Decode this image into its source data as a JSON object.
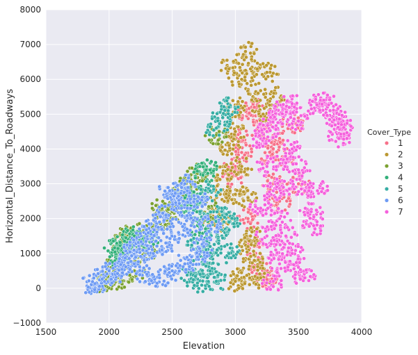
{
  "chart_data": {
    "type": "scatter",
    "xlabel": "Elevation",
    "ylabel": "Horizontal_Distance_To_Roadways",
    "xlim": [
      1500,
      4000
    ],
    "ylim": [
      -1000,
      8000
    ],
    "x_ticks": [
      "1500",
      "2000",
      "2500",
      "3000",
      "3500",
      "4000"
    ],
    "y_ticks": [
      "−1000",
      "0",
      "1000",
      "2000",
      "3000",
      "4000",
      "5000",
      "6000",
      "7000",
      "8000"
    ],
    "grid": true,
    "background": "#eaeaf2",
    "legend": {
      "title": "Cover_Type",
      "placement": "right"
    },
    "series": [
      {
        "name": "1",
        "color": "#f77189",
        "values": [
          [
            2980,
            3200
          ],
          [
            3000,
            3500
          ],
          [
            3050,
            4300
          ],
          [
            3100,
            5000
          ],
          [
            3150,
            5200
          ],
          [
            3200,
            4600
          ],
          [
            3250,
            3800
          ],
          [
            3300,
            3000
          ],
          [
            3350,
            2500
          ],
          [
            3100,
            2000
          ],
          [
            3150,
            1200
          ],
          [
            3200,
            600
          ],
          [
            3250,
            250
          ],
          [
            3400,
            3800
          ],
          [
            3500,
            3000
          ],
          [
            3450,
            4700
          ],
          [
            3050,
            3900
          ],
          [
            3300,
            4300
          ]
        ]
      },
      {
        "name": "2",
        "color": "#bb9832",
        "values": [
          [
            2800,
            2100
          ],
          [
            2880,
            2700
          ],
          [
            2900,
            3300
          ],
          [
            2950,
            4100
          ],
          [
            3000,
            5200
          ],
          [
            3050,
            6000
          ],
          [
            3080,
            6800
          ],
          [
            3120,
            6300
          ],
          [
            3180,
            5600
          ],
          [
            3250,
            6200
          ],
          [
            3300,
            5500
          ],
          [
            3000,
            4500
          ],
          [
            3050,
            3500
          ],
          [
            3100,
            2600
          ],
          [
            3120,
            1500
          ],
          [
            3150,
            800
          ],
          [
            3050,
            300
          ],
          [
            3000,
            200
          ],
          [
            3200,
            300
          ],
          [
            3100,
            1200
          ],
          [
            2950,
            6300
          ],
          [
            3220,
            5000
          ],
          [
            2900,
            1900
          ],
          [
            3000,
            2700
          ]
        ]
      },
      {
        "name": "3",
        "color": "#7ba130",
        "values": [
          [
            1950,
            100
          ],
          [
            2000,
            200
          ],
          [
            2050,
            700
          ],
          [
            2100,
            1300
          ],
          [
            2150,
            1500
          ],
          [
            2200,
            500
          ],
          [
            2300,
            1000
          ],
          [
            2400,
            1900
          ],
          [
            2500,
            2200
          ],
          [
            2550,
            2600
          ],
          [
            2600,
            2800
          ],
          [
            2650,
            3100
          ],
          [
            2700,
            3300
          ],
          [
            2800,
            2200
          ],
          [
            2850,
            4400
          ],
          [
            2150,
            1000
          ],
          [
            2100,
            200
          ],
          [
            2250,
            1600
          ],
          [
            2420,
            2300
          ]
        ]
      },
      {
        "name": "4",
        "color": "#33b07a",
        "values": [
          [
            2050,
            1200
          ],
          [
            2100,
            1100
          ],
          [
            2150,
            1350
          ],
          [
            2200,
            1250
          ],
          [
            2300,
            1400
          ],
          [
            2650,
            2300
          ],
          [
            2700,
            2700
          ],
          [
            2750,
            3300
          ],
          [
            2800,
            3400
          ],
          [
            2600,
            2600
          ],
          [
            2080,
            900
          ],
          [
            2200,
            1500
          ],
          [
            2700,
            1800
          ]
        ]
      },
      {
        "name": "5",
        "color": "#36ada4",
        "values": [
          [
            2650,
            400
          ],
          [
            2700,
            150
          ],
          [
            2750,
            900
          ],
          [
            2800,
            500
          ],
          [
            2850,
            1600
          ],
          [
            2900,
            2100
          ],
          [
            2950,
            1000
          ],
          [
            2700,
            1300
          ],
          [
            2850,
            4600
          ],
          [
            2900,
            4900
          ],
          [
            2950,
            5200
          ],
          [
            2800,
            2800
          ],
          [
            2720,
            2200
          ],
          [
            2850,
            200
          ],
          [
            2950,
            1900
          ],
          [
            2800,
            1200
          ]
        ]
      },
      {
        "name": "6",
        "color": "#6e9bf4",
        "values": [
          [
            1860,
            100
          ],
          [
            1900,
            150
          ],
          [
            1950,
            300
          ],
          [
            2000,
            500
          ],
          [
            2050,
            400
          ],
          [
            2100,
            700
          ],
          [
            2150,
            900
          ],
          [
            2200,
            1100
          ],
          [
            2250,
            1300
          ],
          [
            2300,
            1500
          ],
          [
            2350,
            1700
          ],
          [
            2400,
            1900
          ],
          [
            2450,
            2100
          ],
          [
            2500,
            2500
          ],
          [
            2550,
            2700
          ],
          [
            2600,
            3000
          ],
          [
            2700,
            2500
          ],
          [
            2800,
            1800
          ],
          [
            2350,
            1000
          ],
          [
            2450,
            1300
          ],
          [
            2550,
            1600
          ],
          [
            2650,
            1800
          ],
          [
            2750,
            1200
          ],
          [
            2400,
            300
          ],
          [
            2500,
            500
          ],
          [
            2600,
            700
          ],
          [
            2300,
            400
          ],
          [
            2200,
            700
          ],
          [
            2700,
            900
          ],
          [
            2480,
            2800
          ],
          [
            2620,
            2300
          ]
        ]
      },
      {
        "name": "7",
        "color": "#f561dd",
        "values": [
          [
            3200,
            4300
          ],
          [
            3250,
            4500
          ],
          [
            3300,
            4800
          ],
          [
            3350,
            5000
          ],
          [
            3400,
            5200
          ],
          [
            3450,
            5300
          ],
          [
            3500,
            4800
          ],
          [
            3250,
            3500
          ],
          [
            3300,
            2800
          ],
          [
            3350,
            2000
          ],
          [
            3400,
            1500
          ],
          [
            3450,
            1000
          ],
          [
            3500,
            600
          ],
          [
            3550,
            300
          ],
          [
            3300,
            200
          ],
          [
            3350,
            700
          ],
          [
            3250,
            1500
          ],
          [
            3200,
            2300
          ],
          [
            3600,
            2200
          ],
          [
            3620,
            1800
          ],
          [
            3550,
            2800
          ],
          [
            3650,
            5200
          ],
          [
            3700,
            5400
          ],
          [
            3750,
            5100
          ],
          [
            3800,
            4900
          ],
          [
            3830,
            4600
          ],
          [
            3820,
            4300
          ],
          [
            3840,
            4700
          ],
          [
            3650,
            2800
          ],
          [
            3500,
            3400
          ],
          [
            3450,
            4000
          ],
          [
            3400,
            3600
          ],
          [
            3380,
            2900
          ],
          [
            3320,
            1100
          ]
        ]
      }
    ]
  }
}
